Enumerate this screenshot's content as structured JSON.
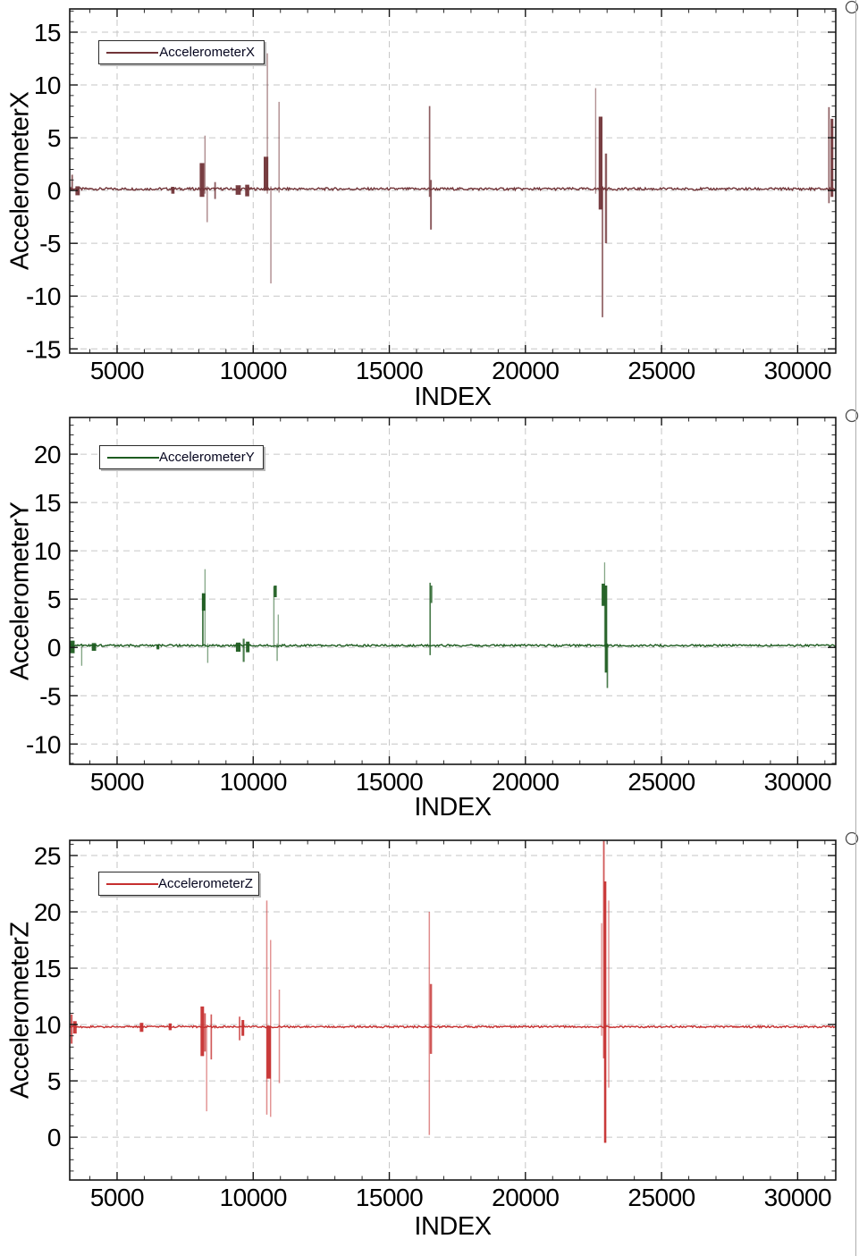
{
  "page": {
    "background": "#ffffff",
    "grid_color": "#c6c6c6",
    "axis_color": "#151515"
  },
  "chart_data": [
    {
      "type": "line",
      "series_name": "AccelerometerX",
      "color": "#713438",
      "xlabel": "INDEX",
      "ylabel": "AccelerometerX",
      "xlim": [
        3260,
        31400
      ],
      "ylim": [
        -15.4,
        17.2
      ],
      "x_ticks": [
        5000,
        10000,
        15000,
        20000,
        25000,
        30000
      ],
      "y_ticks": [
        -15,
        -10,
        -5,
        0,
        5,
        10,
        15
      ],
      "x_minor_step": 1000,
      "y_minor_step": 1,
      "grid": "dashed",
      "legend_position": "top-left",
      "baseline": 0.15,
      "noise_amplitude": 0.12,
      "spikes_format": "[index, min_value, max_value, width_in_index_units]",
      "spikes": [
        [
          3350,
          0.1,
          1.5,
          60
        ],
        [
          3550,
          -0.45,
          0.4,
          160
        ],
        [
          7050,
          -0.3,
          0.35,
          120
        ],
        [
          8120,
          -0.6,
          2.6,
          170
        ],
        [
          8230,
          -0.3,
          5.2,
          50
        ],
        [
          8310,
          -3.0,
          0.4,
          50
        ],
        [
          8600,
          -0.8,
          0.8,
          60
        ],
        [
          9450,
          -0.4,
          0.5,
          190
        ],
        [
          9780,
          -0.55,
          0.55,
          150
        ],
        [
          10470,
          0.0,
          3.2,
          170
        ],
        [
          10520,
          -0.3,
          13.0,
          48
        ],
        [
          10650,
          -8.8,
          0.4,
          48
        ],
        [
          10950,
          -0.2,
          8.4,
          48
        ],
        [
          16480,
          -0.6,
          8.0,
          55
        ],
        [
          16530,
          -3.7,
          1.0,
          65
        ],
        [
          22580,
          -0.3,
          9.7,
          45
        ],
        [
          22760,
          -1.8,
          7.0,
          140
        ],
        [
          22830,
          -12.0,
          0.4,
          55
        ],
        [
          22960,
          -5.0,
          3.5,
          80
        ],
        [
          31150,
          -1.2,
          7.9,
          55
        ],
        [
          31260,
          -0.6,
          6.8,
          100
        ]
      ]
    },
    {
      "type": "line",
      "series_name": "AccelerometerY",
      "color": "#1e5c20",
      "xlabel": "INDEX",
      "ylabel": "AccelerometerY",
      "xlim": [
        3260,
        31400
      ],
      "ylim": [
        -12.1,
        23.8
      ],
      "x_ticks": [
        5000,
        10000,
        15000,
        20000,
        25000,
        30000
      ],
      "y_ticks": [
        -10,
        -5,
        0,
        5,
        10,
        15,
        20
      ],
      "x_minor_step": 1000,
      "y_minor_step": 1,
      "grid": "dashed",
      "legend_position": "top-left",
      "baseline": 0.2,
      "noise_amplitude": 0.1,
      "spikes_format": "[index, min_value, max_value, width_in_index_units]",
      "spikes": [
        [
          3350,
          -0.6,
          0.7,
          180
        ],
        [
          3700,
          -1.9,
          0.4,
          45
        ],
        [
          4150,
          -0.35,
          0.45,
          160
        ],
        [
          6500,
          -0.2,
          0.3,
          100
        ],
        [
          8150,
          0.2,
          5.6,
          60
        ],
        [
          8180,
          3.8,
          5.6,
          130
        ],
        [
          8230,
          0.0,
          8.1,
          42
        ],
        [
          8330,
          -1.6,
          0.4,
          45
        ],
        [
          9450,
          -0.45,
          0.5,
          170
        ],
        [
          9650,
          -1.5,
          0.9,
          70
        ],
        [
          9800,
          -0.5,
          0.6,
          130
        ],
        [
          10760,
          0.0,
          6.3,
          48
        ],
        [
          10810,
          5.2,
          6.4,
          110
        ],
        [
          10880,
          -1.4,
          0.4,
          48
        ],
        [
          10920,
          0.0,
          3.4,
          40
        ],
        [
          16500,
          -0.8,
          6.7,
          55
        ],
        [
          16545,
          4.6,
          6.4,
          70
        ],
        [
          22860,
          4.3,
          6.6,
          120
        ],
        [
          22910,
          0.0,
          8.8,
          42
        ],
        [
          22960,
          -2.6,
          6.4,
          90
        ],
        [
          23010,
          -4.2,
          0.4,
          55
        ]
      ]
    },
    {
      "type": "line",
      "series_name": "AccelerometerZ",
      "color": "#c62f2f",
      "xlabel": "INDEX",
      "ylabel": "AccelerometerZ",
      "xlim": [
        3260,
        31400
      ],
      "ylim": [
        -3.8,
        26.35
      ],
      "x_ticks": [
        5000,
        10000,
        15000,
        20000,
        25000,
        30000
      ],
      "y_ticks": [
        0,
        5,
        10,
        15,
        20,
        25
      ],
      "x_minor_step": 1000,
      "y_minor_step": 1,
      "grid": "dashed",
      "legend_position": "top-left",
      "baseline": 9.8,
      "noise_amplitude": 0.08,
      "spikes_format": "[index, min_value, max_value, width_in_index_units]",
      "spikes": [
        [
          3330,
          8.3,
          10.9,
          70
        ],
        [
          3450,
          9.2,
          10.3,
          130
        ],
        [
          5900,
          9.35,
          10.15,
          130
        ],
        [
          6950,
          9.5,
          10.1,
          110
        ],
        [
          8130,
          7.2,
          11.6,
          130
        ],
        [
          8230,
          7.6,
          11.0,
          60
        ],
        [
          8290,
          2.3,
          10.0,
          45
        ],
        [
          8460,
          6.9,
          10.9,
          55
        ],
        [
          9500,
          8.6,
          10.7,
          55
        ],
        [
          9620,
          9.0,
          10.4,
          100
        ],
        [
          10500,
          2.0,
          21.0,
          50
        ],
        [
          10570,
          5.2,
          9.9,
          160
        ],
        [
          10640,
          1.8,
          17.5,
          45
        ],
        [
          10960,
          4.8,
          13.1,
          50
        ],
        [
          16470,
          0.2,
          20.0,
          50
        ],
        [
          16530,
          7.4,
          13.6,
          80
        ],
        [
          22800,
          9.0,
          19.0,
          42
        ],
        [
          22880,
          7.0,
          26.3,
          60
        ],
        [
          22930,
          -0.5,
          22.7,
          85
        ],
        [
          23060,
          4.4,
          21.0,
          45
        ]
      ]
    }
  ]
}
